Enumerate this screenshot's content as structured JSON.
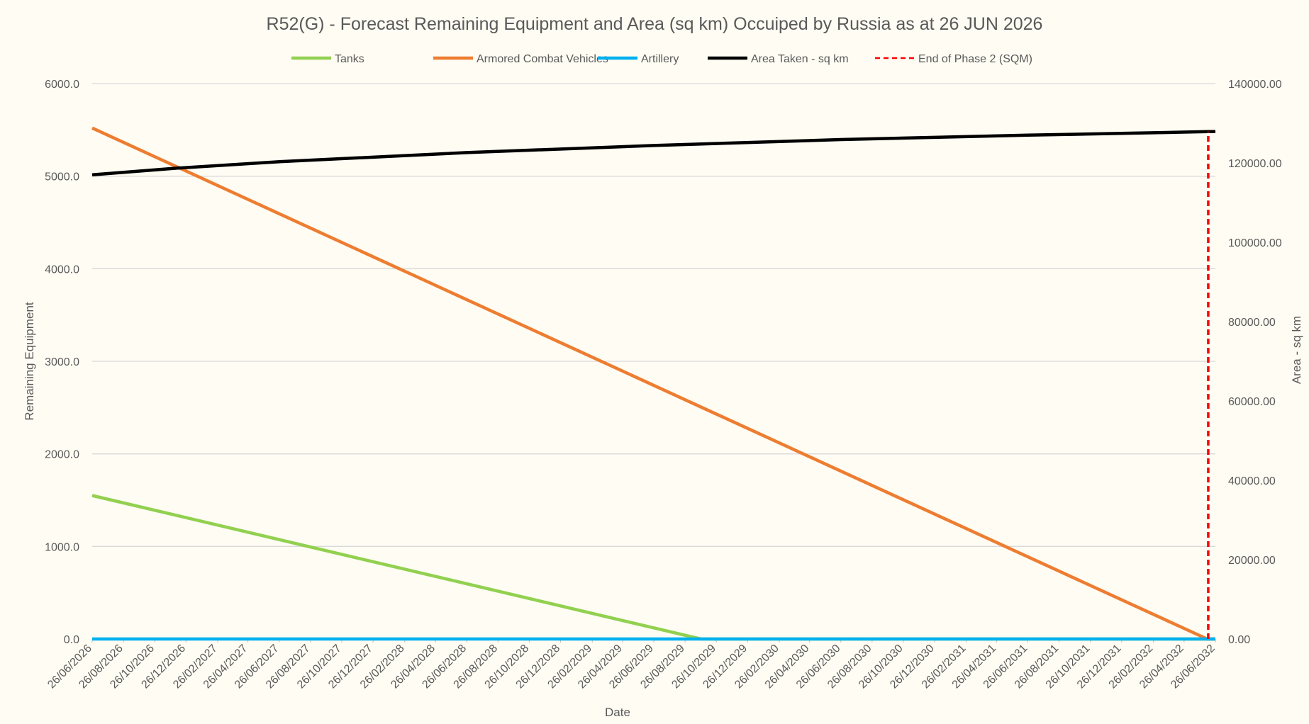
{
  "chart_data": {
    "type": "line",
    "title": "R52(G) - Forecast Remaining Equipment and Area (sq km) Occuiped by Russia as at 26 JUN 2026",
    "xlabel": "Date",
    "ylabel": "Remaining Equipment",
    "y2label": "Area - sq km",
    "ylim": [
      0,
      6000
    ],
    "y2lim": [
      0,
      140000
    ],
    "y_ticks": [
      "0.0",
      "1000.0",
      "2000.0",
      "3000.0",
      "4000.0",
      "5000.0",
      "6000.0"
    ],
    "y2_ticks": [
      "0.00",
      "20000.00",
      "40000.00",
      "60000.00",
      "80000.00",
      "100000.00",
      "120000.00",
      "140000.00"
    ],
    "x_ticks": [
      "26/06/2026",
      "26/08/2026",
      "26/10/2026",
      "26/12/2026",
      "26/02/2027",
      "26/04/2027",
      "26/06/2027",
      "26/08/2027",
      "26/10/2027",
      "26/12/2027",
      "26/02/2028",
      "26/04/2028",
      "26/06/2028",
      "26/08/2028",
      "26/10/2028",
      "26/12/2028",
      "26/02/2029",
      "26/04/2029",
      "26/06/2029",
      "26/08/2029",
      "26/10/2029",
      "26/12/2029",
      "26/02/2030",
      "26/04/2030",
      "26/06/2030",
      "26/08/2030",
      "26/10/2030",
      "26/12/2030",
      "26/02/2031",
      "26/04/2031",
      "26/06/2031",
      "26/08/2031",
      "26/10/2031",
      "26/12/2031",
      "26/02/2032",
      "26/04/2032",
      "26/06/2032"
    ],
    "grid": true,
    "legend_position": "top",
    "series": [
      {
        "name": "Tanks",
        "axis": "left",
        "color": "#92d050",
        "dash": "solid",
        "x": [
          "26/06/2026",
          "26/09/2029",
          "26/06/2032"
        ],
        "y": [
          1550,
          0,
          0
        ]
      },
      {
        "name": "Armored Combat Vehicles",
        "axis": "left",
        "color": "#ed7d31",
        "dash": "solid",
        "x": [
          "26/06/2026",
          "10/06/2032",
          "26/06/2032"
        ],
        "y": [
          5520,
          0,
          0
        ]
      },
      {
        "name": "Artillery",
        "axis": "left",
        "color": "#00b0f0",
        "dash": "solid",
        "x": [
          "26/06/2026",
          "26/06/2032"
        ],
        "y": [
          0,
          0
        ]
      },
      {
        "name": "Area Taken - sq km",
        "axis": "right",
        "color": "#000000",
        "dash": "solid",
        "x": [
          "26/06/2026",
          "10/12/2026",
          "26/06/2027",
          "26/06/2028",
          "26/06/2029",
          "26/06/2030",
          "26/06/2031",
          "12/06/2032",
          "26/06/2032"
        ],
        "y": [
          117000,
          118700,
          120300,
          122600,
          124400,
          125900,
          127000,
          127900,
          127900
        ]
      },
      {
        "name": "End of Phase 2 (SQM)",
        "axis": "right",
        "color": "#ff0000",
        "dash": "dashed",
        "x": [
          "12/06/2032",
          "12/06/2032"
        ],
        "y": [
          0,
          127900
        ]
      }
    ]
  }
}
